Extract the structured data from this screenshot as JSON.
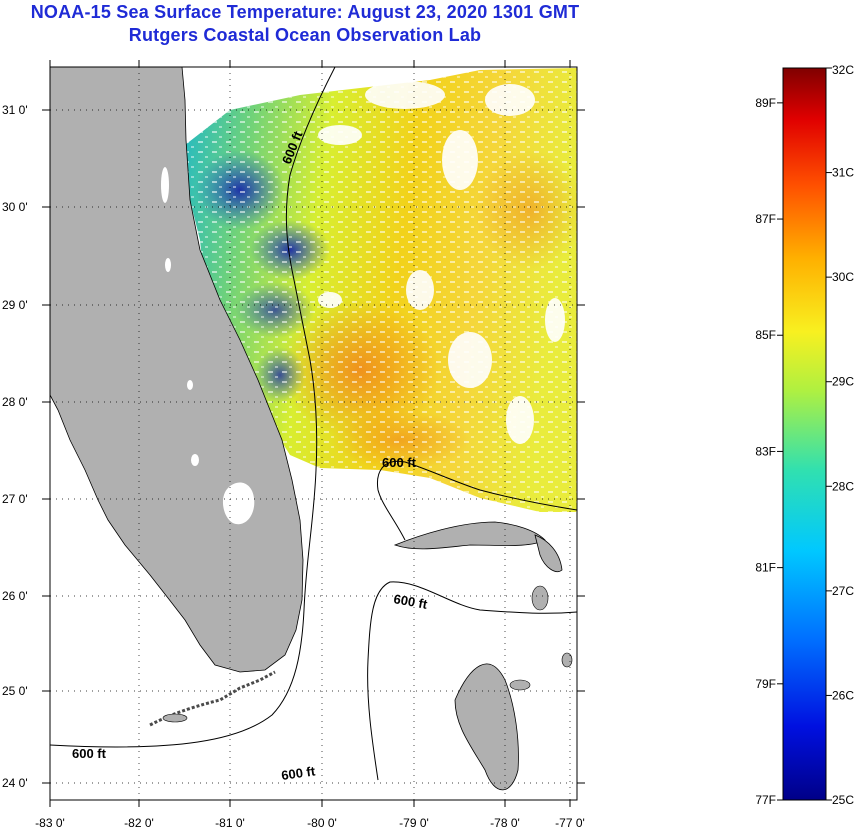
{
  "title": {
    "line1": "NOAA-15 Sea Surface Temperature:  August 23, 2020 1301 GMT",
    "line2": "Rutgers Coastal Ocean Observation Lab"
  },
  "axes": {
    "lat_labels": [
      "31 0'",
      "30 0'",
      "29 0'",
      "28 0'",
      "27 0'",
      "26 0'",
      "25 0'",
      "24 0'"
    ],
    "lon_labels": [
      "-83 0'",
      "-82 0'",
      "-81 0'",
      "-80 0'",
      "-79 0'",
      "-78 0'",
      "-77 0'"
    ]
  },
  "contours": {
    "label": "600 ft",
    "label_count": 5
  },
  "colorbar": {
    "celsius_labels": [
      "32C",
      "31C",
      "30C",
      "29C",
      "28C",
      "27C",
      "26C",
      "25C"
    ],
    "fahrenheit_labels": [
      "89F",
      "87F",
      "85F",
      "83F",
      "81F",
      "79F",
      "77F"
    ],
    "min_c": 25,
    "max_c": 32
  },
  "colors": {
    "title": "#1f2bd6",
    "land": "#b0b0b0",
    "ocean_nodata": "#ffffff"
  }
}
